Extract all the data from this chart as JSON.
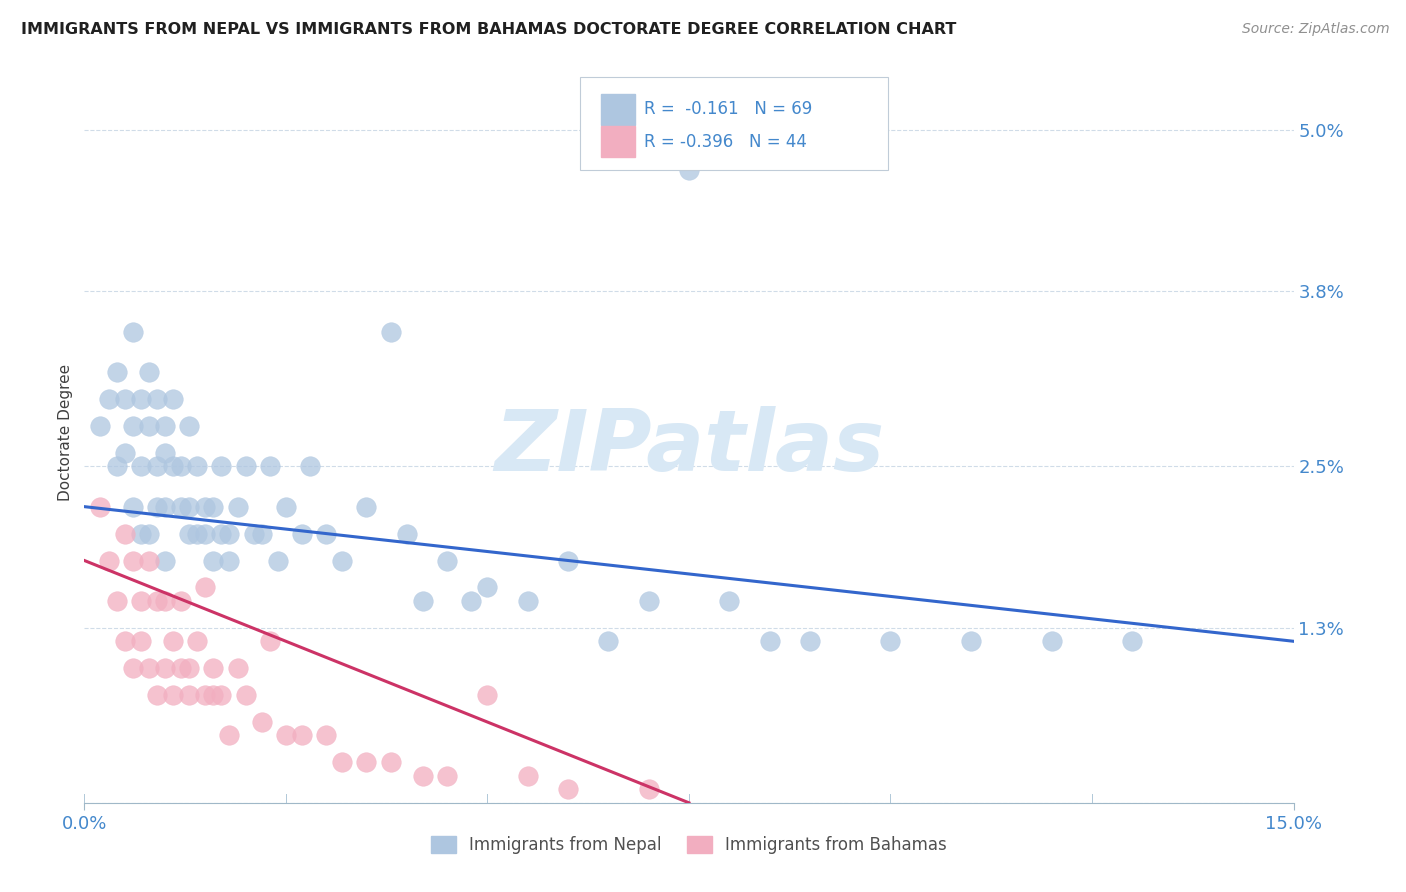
{
  "title": "IMMIGRANTS FROM NEPAL VS IMMIGRANTS FROM BAHAMAS DOCTORATE DEGREE CORRELATION CHART",
  "source": "Source: ZipAtlas.com",
  "ylabel": "Doctorate Degree",
  "xlim": [
    0.0,
    0.15
  ],
  "ylim": [
    0.0,
    0.055
  ],
  "ytick_vals": [
    0.0,
    0.013,
    0.025,
    0.038,
    0.05
  ],
  "ytick_labels": [
    "",
    "1.3%",
    "2.5%",
    "3.8%",
    "5.0%"
  ],
  "xtick_vals": [
    0.0,
    0.15
  ],
  "xtick_labels": [
    "0.0%",
    "15.0%"
  ],
  "legend_R1": "R =  -0.161",
  "legend_N1": "N = 69",
  "legend_R2": "R = -0.396",
  "legend_N2": "N = 44",
  "legend_label1": "Immigrants from Nepal",
  "legend_label2": "Immigrants from Bahamas",
  "color_nepal": "#aec6e0",
  "color_bahamas": "#f2aec0",
  "color_line_nepal": "#3366cc",
  "color_line_bahamas": "#cc3366",
  "color_axis_text": "#4488cc",
  "color_grid": "#d0dce8",
  "watermark_text": "ZIPatlas",
  "watermark_color": "#d8e8f5",
  "nepal_x": [
    0.002,
    0.003,
    0.004,
    0.004,
    0.005,
    0.005,
    0.006,
    0.006,
    0.006,
    0.007,
    0.007,
    0.007,
    0.008,
    0.008,
    0.008,
    0.009,
    0.009,
    0.009,
    0.01,
    0.01,
    0.01,
    0.01,
    0.011,
    0.011,
    0.012,
    0.012,
    0.013,
    0.013,
    0.013,
    0.014,
    0.014,
    0.015,
    0.015,
    0.016,
    0.016,
    0.017,
    0.017,
    0.018,
    0.018,
    0.019,
    0.02,
    0.021,
    0.022,
    0.023,
    0.024,
    0.025,
    0.027,
    0.028,
    0.03,
    0.032,
    0.035,
    0.038,
    0.04,
    0.042,
    0.045,
    0.048,
    0.05,
    0.055,
    0.06,
    0.065,
    0.07,
    0.08,
    0.085,
    0.09,
    0.1,
    0.11,
    0.12,
    0.13,
    0.075
  ],
  "nepal_y": [
    0.028,
    0.03,
    0.025,
    0.032,
    0.026,
    0.03,
    0.028,
    0.022,
    0.035,
    0.03,
    0.025,
    0.02,
    0.028,
    0.032,
    0.02,
    0.025,
    0.022,
    0.03,
    0.026,
    0.022,
    0.028,
    0.018,
    0.025,
    0.03,
    0.022,
    0.025,
    0.02,
    0.028,
    0.022,
    0.02,
    0.025,
    0.02,
    0.022,
    0.018,
    0.022,
    0.02,
    0.025,
    0.018,
    0.02,
    0.022,
    0.025,
    0.02,
    0.02,
    0.025,
    0.018,
    0.022,
    0.02,
    0.025,
    0.02,
    0.018,
    0.022,
    0.035,
    0.02,
    0.015,
    0.018,
    0.015,
    0.016,
    0.015,
    0.018,
    0.012,
    0.015,
    0.015,
    0.012,
    0.012,
    0.012,
    0.012,
    0.012,
    0.012,
    0.047
  ],
  "bahamas_x": [
    0.002,
    0.003,
    0.004,
    0.005,
    0.005,
    0.006,
    0.006,
    0.007,
    0.007,
    0.008,
    0.008,
    0.009,
    0.009,
    0.01,
    0.01,
    0.011,
    0.011,
    0.012,
    0.012,
    0.013,
    0.013,
    0.014,
    0.015,
    0.015,
    0.016,
    0.016,
    0.017,
    0.018,
    0.019,
    0.02,
    0.022,
    0.023,
    0.025,
    0.027,
    0.03,
    0.032,
    0.035,
    0.038,
    0.042,
    0.045,
    0.05,
    0.055,
    0.06,
    0.07
  ],
  "bahamas_y": [
    0.022,
    0.018,
    0.015,
    0.02,
    0.012,
    0.018,
    0.01,
    0.015,
    0.012,
    0.018,
    0.01,
    0.015,
    0.008,
    0.015,
    0.01,
    0.012,
    0.008,
    0.01,
    0.015,
    0.01,
    0.008,
    0.012,
    0.008,
    0.016,
    0.01,
    0.008,
    0.008,
    0.005,
    0.01,
    0.008,
    0.006,
    0.012,
    0.005,
    0.005,
    0.005,
    0.003,
    0.003,
    0.003,
    0.002,
    0.002,
    0.008,
    0.002,
    0.001,
    0.001
  ],
  "nepal_line_x": [
    0.0,
    0.15
  ],
  "nepal_line_y": [
    0.022,
    0.012
  ],
  "bahamas_line_x": [
    0.0,
    0.075
  ],
  "bahamas_line_y": [
    0.018,
    0.0
  ]
}
